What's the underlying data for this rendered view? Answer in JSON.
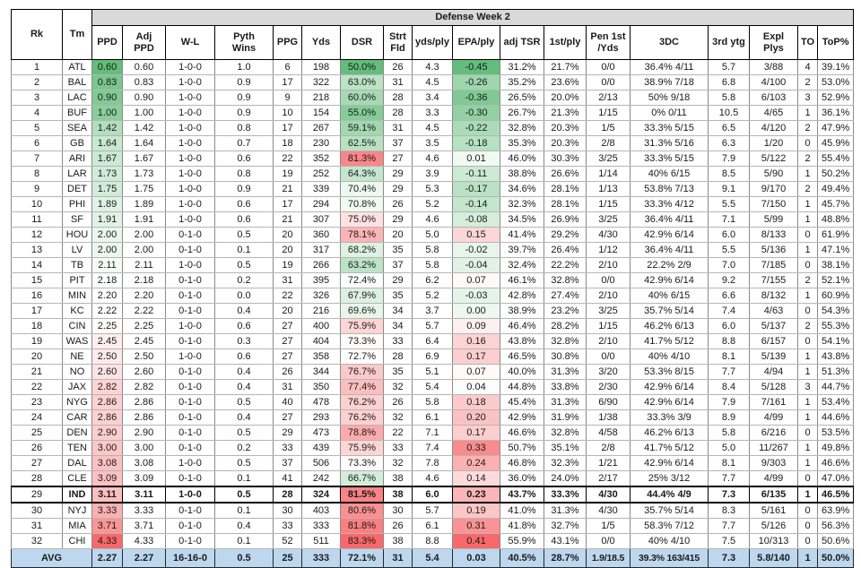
{
  "chart_data": {
    "type": "table",
    "title": "Defense Week 2",
    "group_header_label": "Defense Week 2",
    "columns": [
      "Rk",
      "Tm",
      "PPD",
      "Adj\nPPD",
      "W-L",
      "Pyth\nWins",
      "PPG",
      "Yds",
      "DSR",
      "Strt\nFld",
      "yds/ply",
      "EPA/ply",
      "adj TSR",
      "1st/ply",
      "Pen 1st\n/Yds",
      "3DC",
      "3rd ytg",
      "Expl\nPlys",
      "TO",
      "ToP%"
    ],
    "column_keys": [
      "rk",
      "tm",
      "ppd",
      "adj-ppd",
      "w-l",
      "pyth-wins",
      "ppg",
      "yds",
      "dsr",
      "strt-fld",
      "yds-ply",
      "epa-ply",
      "adj-tsr",
      "1st-ply",
      "pen-1st-yds",
      "3dc",
      "3rd-ytg",
      "expl-plys",
      "to",
      "top-pct"
    ],
    "color_scale_columns": [
      "PPD",
      "DSR",
      "EPA/ply"
    ],
    "highlighted_team": "IND",
    "rows": [
      [
        "1",
        "ATL",
        "0.60",
        "0.60",
        "1-0-0",
        "1.0",
        "6",
        "198",
        "50.0%",
        "26",
        "4.3",
        "-0.45",
        "31.2%",
        "21.7%",
        "0/0",
        "36.4% 4/11",
        "5.7",
        "3/88",
        "4",
        "39.1%"
      ],
      [
        "2",
        "BAL",
        "0.83",
        "0.83",
        "1-0-0",
        "0.9",
        "17",
        "322",
        "63.0%",
        "31",
        "4.5",
        "-0.26",
        "35.2%",
        "23.6%",
        "0/0",
        "38.9% 7/18",
        "6.8",
        "4/100",
        "2",
        "53.0%"
      ],
      [
        "3",
        "LAC",
        "0.90",
        "0.90",
        "1-0-0",
        "0.9",
        "9",
        "218",
        "60.0%",
        "28",
        "3.4",
        "-0.36",
        "26.5%",
        "20.0%",
        "2/13",
        "50% 9/18",
        "5.8",
        "6/103",
        "3",
        "52.9%"
      ],
      [
        "4",
        "BUF",
        "1.00",
        "1.00",
        "1-0-0",
        "0.9",
        "10",
        "154",
        "55.0%",
        "28",
        "3.3",
        "-0.30",
        "26.7%",
        "21.3%",
        "1/15",
        "0% 0/11",
        "10.5",
        "4/65",
        "1",
        "36.1%"
      ],
      [
        "5",
        "SEA",
        "1.42",
        "1.42",
        "1-0-0",
        "0.8",
        "17",
        "267",
        "59.1%",
        "31",
        "4.5",
        "-0.22",
        "32.8%",
        "20.3%",
        "1/5",
        "33.3% 5/15",
        "6.5",
        "4/120",
        "2",
        "47.9%"
      ],
      [
        "6",
        "GB",
        "1.64",
        "1.64",
        "1-0-0",
        "0.7",
        "18",
        "230",
        "62.5%",
        "37",
        "3.5",
        "-0.18",
        "35.3%",
        "20.3%",
        "2/8",
        "31.3% 5/16",
        "6.3",
        "1/20",
        "0",
        "45.9%"
      ],
      [
        "7",
        "ARI",
        "1.67",
        "1.67",
        "1-0-0",
        "0.6",
        "22",
        "352",
        "81.3%",
        "27",
        "4.6",
        "0.01",
        "46.0%",
        "30.3%",
        "3/25",
        "33.3% 5/15",
        "7.9",
        "5/122",
        "2",
        "55.4%"
      ],
      [
        "8",
        "LAR",
        "1.73",
        "1.73",
        "1-0-0",
        "0.8",
        "19",
        "252",
        "64.3%",
        "29",
        "3.9",
        "-0.11",
        "38.8%",
        "26.6%",
        "1/14",
        "40% 6/15",
        "8.5",
        "5/90",
        "1",
        "50.2%"
      ],
      [
        "9",
        "DET",
        "1.75",
        "1.75",
        "1-0-0",
        "0.9",
        "21",
        "339",
        "70.4%",
        "29",
        "5.3",
        "-0.17",
        "34.6%",
        "28.1%",
        "1/13",
        "53.8% 7/13",
        "9.1",
        "9/170",
        "2",
        "49.4%"
      ],
      [
        "10",
        "PHI",
        "1.89",
        "1.89",
        "1-0-0",
        "0.6",
        "17",
        "294",
        "70.8%",
        "26",
        "5.2",
        "-0.14",
        "32.3%",
        "28.1%",
        "1/15",
        "33.3% 4/12",
        "5.5",
        "7/150",
        "1",
        "45.7%"
      ],
      [
        "11",
        "SF",
        "1.91",
        "1.91",
        "1-0-0",
        "0.6",
        "21",
        "307",
        "75.0%",
        "29",
        "4.6",
        "-0.08",
        "34.5%",
        "26.9%",
        "3/25",
        "36.4% 4/11",
        "7.1",
        "5/99",
        "1",
        "48.8%"
      ],
      [
        "12",
        "HOU",
        "2.00",
        "2.00",
        "0-1-0",
        "0.5",
        "20",
        "360",
        "78.1%",
        "20",
        "5.0",
        "0.15",
        "41.4%",
        "29.2%",
        "4/30",
        "42.9% 6/14",
        "6.0",
        "8/133",
        "0",
        "61.9%"
      ],
      [
        "13",
        "LV",
        "2.00",
        "2.00",
        "0-1-0",
        "0.1",
        "20",
        "317",
        "68.2%",
        "35",
        "5.8",
        "-0.02",
        "39.7%",
        "26.4%",
        "1/12",
        "36.4% 4/11",
        "5.5",
        "5/136",
        "1",
        "47.1%"
      ],
      [
        "14",
        "TB",
        "2.11",
        "2.11",
        "1-0-0",
        "0.5",
        "19",
        "266",
        "63.2%",
        "37",
        "5.8",
        "-0.04",
        "32.4%",
        "22.2%",
        "2/10",
        "22.2% 2/9",
        "7.0",
        "7/185",
        "0",
        "38.1%"
      ],
      [
        "15",
        "PIT",
        "2.18",
        "2.18",
        "0-1-0",
        "0.2",
        "31",
        "395",
        "72.4%",
        "29",
        "6.2",
        "0.07",
        "46.1%",
        "32.8%",
        "0/0",
        "42.9% 6/14",
        "9.2",
        "7/155",
        "2",
        "52.1%"
      ],
      [
        "16",
        "MIN",
        "2.20",
        "2.20",
        "0-1-0",
        "0.0",
        "22",
        "326",
        "67.9%",
        "35",
        "5.2",
        "-0.03",
        "42.8%",
        "27.4%",
        "2/10",
        "40% 6/15",
        "6.6",
        "8/132",
        "1",
        "60.9%"
      ],
      [
        "17",
        "KC",
        "2.22",
        "2.22",
        "0-1-0",
        "0.4",
        "20",
        "216",
        "69.6%",
        "34",
        "3.7",
        "0.00",
        "38.9%",
        "23.2%",
        "3/25",
        "35.7% 5/14",
        "7.4",
        "4/63",
        "0",
        "54.3%"
      ],
      [
        "18",
        "CIN",
        "2.25",
        "2.25",
        "1-0-0",
        "0.6",
        "27",
        "400",
        "75.9%",
        "34",
        "5.7",
        "0.09",
        "46.4%",
        "28.2%",
        "1/15",
        "46.2% 6/13",
        "6.0",
        "5/137",
        "2",
        "55.3%"
      ],
      [
        "19",
        "WAS",
        "2.45",
        "2.45",
        "0-1-0",
        "0.3",
        "27",
        "404",
        "73.3%",
        "33",
        "6.4",
        "0.16",
        "43.8%",
        "32.8%",
        "2/10",
        "41.7% 5/12",
        "8.8",
        "6/157",
        "0",
        "54.1%"
      ],
      [
        "20",
        "NE",
        "2.50",
        "2.50",
        "1-0-0",
        "0.6",
        "27",
        "358",
        "72.7%",
        "28",
        "6.9",
        "0.17",
        "46.5%",
        "30.8%",
        "0/0",
        "40% 4/10",
        "8.1",
        "5/139",
        "1",
        "43.8%"
      ],
      [
        "21",
        "NO",
        "2.60",
        "2.60",
        "0-1-0",
        "0.4",
        "26",
        "344",
        "76.7%",
        "35",
        "5.1",
        "0.07",
        "40.0%",
        "31.3%",
        "3/20",
        "53.3% 8/15",
        "7.7",
        "4/94",
        "1",
        "51.3%"
      ],
      [
        "22",
        "JAX",
        "2.82",
        "2.82",
        "0-1-0",
        "0.4",
        "31",
        "350",
        "77.4%",
        "32",
        "5.4",
        "0.04",
        "44.8%",
        "33.8%",
        "2/30",
        "42.9% 6/14",
        "8.4",
        "5/128",
        "3",
        "44.7%"
      ],
      [
        "23",
        "NYG",
        "2.86",
        "2.86",
        "0-1-0",
        "0.5",
        "40",
        "478",
        "76.2%",
        "26",
        "5.8",
        "0.18",
        "45.4%",
        "31.3%",
        "6/90",
        "42.9% 6/14",
        "7.9",
        "7/161",
        "1",
        "53.4%"
      ],
      [
        "24",
        "CAR",
        "2.86",
        "2.86",
        "0-1-0",
        "0.4",
        "27",
        "293",
        "76.2%",
        "32",
        "6.1",
        "0.20",
        "42.9%",
        "31.9%",
        "1/38",
        "33.3% 3/9",
        "8.9",
        "4/99",
        "1",
        "44.6%"
      ],
      [
        "25",
        "DEN",
        "2.90",
        "2.90",
        "0-1-0",
        "0.5",
        "29",
        "473",
        "78.8%",
        "22",
        "7.1",
        "0.17",
        "46.6%",
        "32.8%",
        "4/58",
        "46.2% 6/13",
        "5.8",
        "6/216",
        "0",
        "53.5%"
      ],
      [
        "26",
        "TEN",
        "3.00",
        "3.00",
        "0-1-0",
        "0.2",
        "33",
        "439",
        "75.9%",
        "33",
        "7.4",
        "0.33",
        "50.7%",
        "35.1%",
        "2/8",
        "41.7% 5/12",
        "5.0",
        "11/267",
        "1",
        "49.8%"
      ],
      [
        "27",
        "DAL",
        "3.08",
        "3.08",
        "1-0-0",
        "0.5",
        "37",
        "506",
        "73.3%",
        "32",
        "7.8",
        "0.24",
        "46.8%",
        "32.3%",
        "1/21",
        "42.9% 6/14",
        "8.1",
        "9/303",
        "1",
        "46.6%"
      ],
      [
        "28",
        "CLE",
        "3.09",
        "3.09",
        "0-1-0",
        "0.1",
        "41",
        "242",
        "66.7%",
        "38",
        "4.6",
        "0.14",
        "36.0%",
        "24.0%",
        "2/17",
        "25% 3/12",
        "7.7",
        "4/99",
        "0",
        "47.0%"
      ],
      [
        "29",
        "IND",
        "3.11",
        "3.11",
        "1-0-0",
        "0.5",
        "28",
        "324",
        "81.5%",
        "38",
        "6.0",
        "0.23",
        "43.7%",
        "33.3%",
        "4/30",
        "44.4% 4/9",
        "7.3",
        "6/135",
        "1",
        "46.5%"
      ],
      [
        "30",
        "NYJ",
        "3.33",
        "3.33",
        "0-1-0",
        "0.1",
        "30",
        "403",
        "80.6%",
        "30",
        "5.7",
        "0.19",
        "41.0%",
        "31.3%",
        "4/30",
        "35.7% 5/14",
        "8.3",
        "5/161",
        "0",
        "63.9%"
      ],
      [
        "31",
        "MIA",
        "3.71",
        "3.71",
        "0-1-0",
        "0.4",
        "33",
        "333",
        "81.8%",
        "26",
        "6.1",
        "0.31",
        "41.8%",
        "32.7%",
        "1/5",
        "58.3% 7/12",
        "7.7",
        "5/126",
        "0",
        "56.3%"
      ],
      [
        "32",
        "CHI",
        "4.33",
        "4.33",
        "0-1-0",
        "0.1",
        "52",
        "511",
        "83.3%",
        "38",
        "8.8",
        "0.41",
        "55.9%",
        "43.1%",
        "0/0",
        "40% 4/10",
        "7.5",
        "10/313",
        "0",
        "50.6%"
      ]
    ],
    "avg_row": [
      "AVG",
      "2.27",
      "2.27",
      "16-16-0",
      "0.5",
      "25",
      "333",
      "72.1%",
      "31",
      "5.4",
      "0.03",
      "40.5%",
      "28.7%",
      "1.9/18.5",
      "39.3% 163/415",
      "7.3",
      "5.8/140",
      "1",
      "50.0%"
    ],
    "colors": {
      "scale_green": "#63BE7B",
      "scale_mid": "#FFFFFF",
      "scale_red": "#F8696B",
      "avg_row_bg": "#BDD7EE",
      "group_header_bg": "#D9D9D9",
      "grid_vertical": "#8a8a8a",
      "grid_horizontal": "#b5b5b5",
      "highlight_border": "#000000"
    }
  }
}
